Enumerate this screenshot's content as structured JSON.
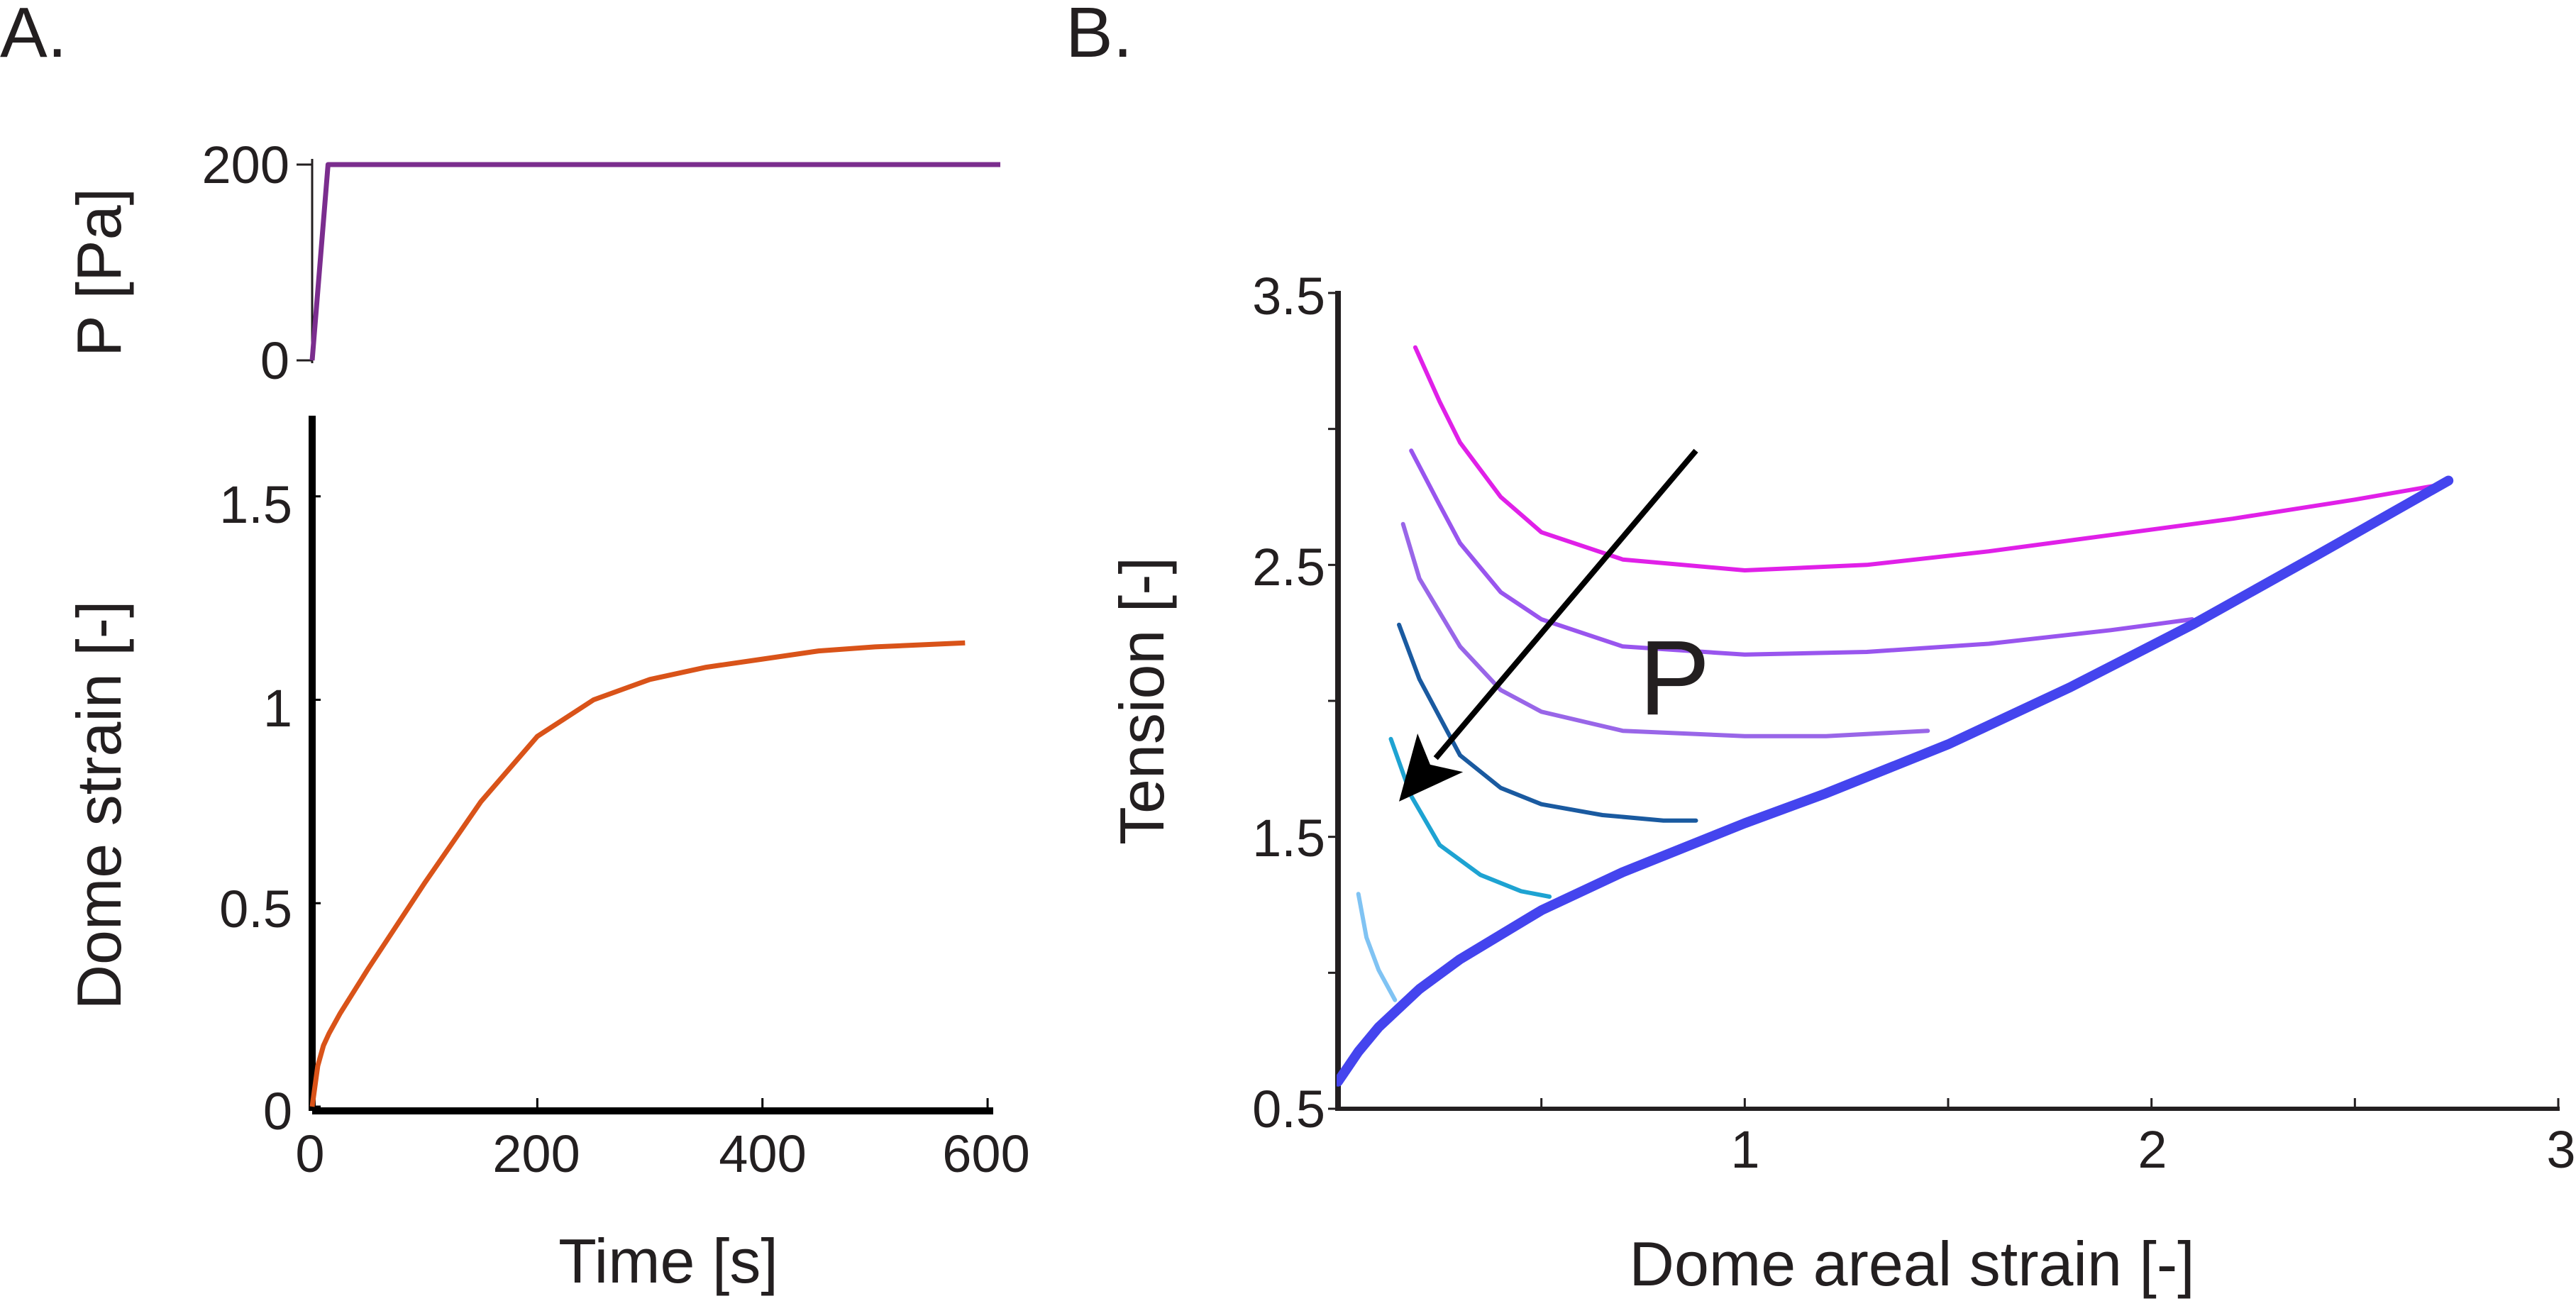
{
  "panels": {
    "a": {
      "label": "A."
    },
    "b": {
      "label": "B."
    }
  },
  "chart_data": [
    {
      "type": "line",
      "panel": "A.",
      "ylabel": "P [Pa]",
      "xlim": [
        0,
        605
      ],
      "ylim": [
        0,
        200
      ],
      "y_ticks": [
        "0",
        "200"
      ],
      "grid": false,
      "series": [
        {
          "color": "#7b2d8e",
          "x": [
            0,
            14,
            605
          ],
          "y": [
            0,
            200,
            200
          ]
        }
      ]
    },
    {
      "type": "line",
      "panel": "A.",
      "xlabel": "Time [s]",
      "ylabel": "Dome strain [-]",
      "xlim": [
        0,
        605
      ],
      "ylim": [
        0,
        1.7
      ],
      "x_ticks": [
        "0",
        "200",
        "400",
        "600"
      ],
      "y_ticks": [
        "0",
        "0.5",
        "1",
        "1.5"
      ],
      "grid": false,
      "series": [
        {
          "color": "#d95319",
          "x": [
            0,
            5,
            10,
            15,
            25,
            50,
            100,
            150,
            200,
            250,
            300,
            350,
            400,
            450,
            500,
            580
          ],
          "y": [
            0,
            0.1,
            0.15,
            0.18,
            0.23,
            0.34,
            0.55,
            0.75,
            0.91,
            1.0,
            1.05,
            1.08,
            1.1,
            1.12,
            1.13,
            1.14
          ]
        }
      ]
    },
    {
      "type": "line",
      "panel": "B.",
      "xlabel": "Dome areal strain [-]",
      "ylabel": "Tension [-]",
      "xlim": [
        0,
        3
      ],
      "ylim": [
        0.5,
        3.5
      ],
      "x_ticks": [
        "1",
        "2",
        "3"
      ],
      "y_ticks": [
        "0.5",
        "1.5",
        "2.5",
        "3.5"
      ],
      "grid": false,
      "annotation": {
        "text": "P",
        "arrow_from": [
          0.88,
          2.92
        ],
        "arrow_to": [
          0.15,
          1.63
        ]
      },
      "series": [
        {
          "color": "#4444ee",
          "x": [
            0,
            0.05,
            0.1,
            0.2,
            0.3,
            0.5,
            0.7,
            0.9,
            1.0,
            1.2,
            1.5,
            1.8,
            2.1,
            2.4,
            2.6,
            2.73
          ],
          "y": [
            0.6,
            0.71,
            0.8,
            0.94,
            1.05,
            1.23,
            1.37,
            1.49,
            1.55,
            1.66,
            1.84,
            2.05,
            2.28,
            2.53,
            2.7,
            2.81
          ]
        },
        {
          "color": "#e020e8",
          "x": [
            0.19,
            0.25,
            0.3,
            0.4,
            0.5,
            0.7,
            1.0,
            1.3,
            1.6,
            1.9,
            2.2,
            2.5,
            2.73
          ],
          "y": [
            3.3,
            3.1,
            2.95,
            2.75,
            2.62,
            2.52,
            2.48,
            2.5,
            2.55,
            2.61,
            2.67,
            2.74,
            2.8
          ]
        },
        {
          "color": "#9955ee",
          "x": [
            0.18,
            0.25,
            0.3,
            0.4,
            0.5,
            0.7,
            1.0,
            1.3,
            1.6,
            1.9,
            2.1
          ],
          "y": [
            2.92,
            2.72,
            2.58,
            2.4,
            2.3,
            2.2,
            2.17,
            2.18,
            2.21,
            2.26,
            2.3
          ]
        },
        {
          "color": "#9966e8",
          "x": [
            0.16,
            0.2,
            0.3,
            0.4,
            0.5,
            0.7,
            1.0,
            1.2,
            1.45
          ],
          "y": [
            2.65,
            2.45,
            2.2,
            2.04,
            1.96,
            1.89,
            1.87,
            1.87,
            1.89
          ]
        },
        {
          "color": "#1a5aa0",
          "x": [
            0.15,
            0.2,
            0.3,
            0.4,
            0.5,
            0.65,
            0.8,
            0.88
          ],
          "y": [
            2.28,
            2.08,
            1.8,
            1.68,
            1.62,
            1.58,
            1.56,
            1.56
          ]
        },
        {
          "color": "#1ea3d2",
          "x": [
            0.13,
            0.18,
            0.25,
            0.35,
            0.45,
            0.52
          ],
          "y": [
            1.86,
            1.65,
            1.47,
            1.36,
            1.3,
            1.28
          ]
        },
        {
          "color": "#80c3f3",
          "x": [
            0.05,
            0.07,
            0.1,
            0.14
          ],
          "y": [
            1.29,
            1.13,
            1.01,
            0.9
          ]
        }
      ]
    }
  ]
}
